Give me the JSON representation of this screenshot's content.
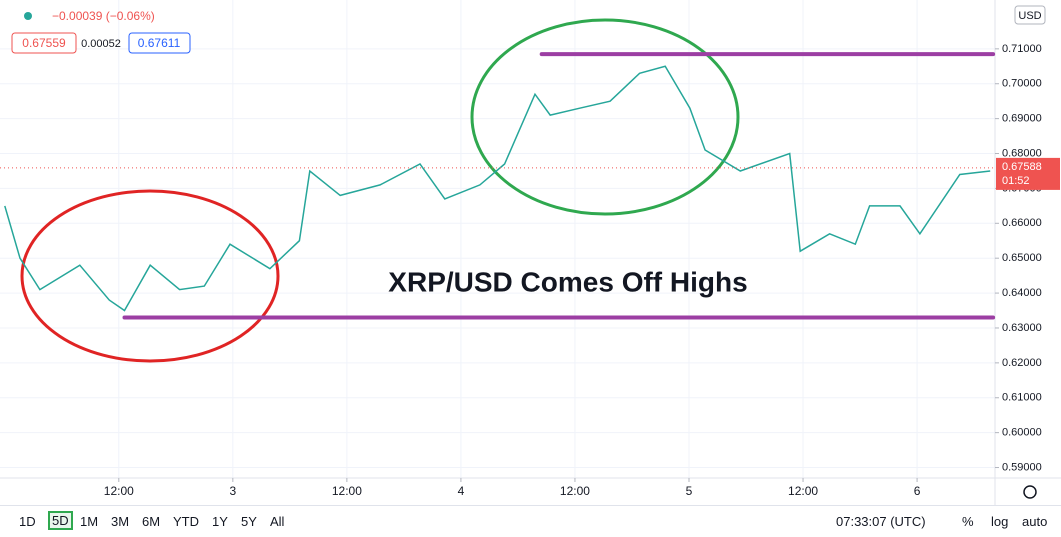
{
  "chart_data": {
    "type": "line",
    "title": "XRP/USD Comes Off Highs",
    "x": [
      0,
      1.6,
      3.7,
      7.9,
      11,
      12.6,
      15.3,
      18.4,
      21,
      23.7,
      27.9,
      31,
      32.1,
      35.3,
      39.5,
      43.7,
      46.3,
      50,
      52.6,
      54.2,
      55.8,
      57.4,
      60.5,
      63.7,
      66.8,
      69.5,
      72.1,
      73.7,
      77.4,
      82.6,
      83.7,
      86.8,
      89.5,
      91,
      94.2,
      96.3,
      100.5,
      103.7
    ],
    "values": [
      0.665,
      0.65,
      0.641,
      0.648,
      0.638,
      0.635,
      0.648,
      0.641,
      0.642,
      0.654,
      0.647,
      0.655,
      0.675,
      0.668,
      0.671,
      0.677,
      0.667,
      0.671,
      0.677,
      0.687,
      0.697,
      0.691,
      0.693,
      0.695,
      0.703,
      0.705,
      0.693,
      0.681,
      0.675,
      0.68,
      0.652,
      0.657,
      0.654,
      0.665,
      0.665,
      0.657,
      0.674,
      0.675
    ],
    "color": "#26a69a",
    "xlim": [
      -0.5,
      104.2
    ],
    "ylim": [
      0.587,
      0.724
    ],
    "xticks": [
      {
        "value": 12,
        "label": "12:00"
      },
      {
        "value": 24,
        "label": "3"
      },
      {
        "value": 36,
        "label": "12:00"
      },
      {
        "value": 48,
        "label": "4"
      },
      {
        "value": 60,
        "label": "12:00"
      },
      {
        "value": 72,
        "label": "5"
      },
      {
        "value": 84,
        "label": "12:00"
      },
      {
        "value": 96,
        "label": "6"
      }
    ],
    "yticks": [
      {
        "value": 0.59,
        "label": "0.59000"
      },
      {
        "value": 0.6,
        "label": "0.60000"
      },
      {
        "value": 0.61,
        "label": "0.61000"
      },
      {
        "value": 0.62,
        "label": "0.62000"
      },
      {
        "value": 0.63,
        "label": "0.63000"
      },
      {
        "value": 0.64,
        "label": "0.64000"
      },
      {
        "value": 0.65,
        "label": "0.65000"
      },
      {
        "value": 0.66,
        "label": "0.66000"
      },
      {
        "value": 0.67,
        "label": "0.67000"
      },
      {
        "value": 0.68,
        "label": "0.68000"
      },
      {
        "value": 0.69,
        "label": "0.69000"
      },
      {
        "value": 0.7,
        "label": "0.70000"
      },
      {
        "value": 0.71,
        "label": "0.71000"
      }
    ],
    "grid": true,
    "currency": "USD",
    "last_price": 0.67588,
    "countdown": "01:52",
    "levels": [
      {
        "value": 0.7085,
        "from": 56.5,
        "to": 104,
        "color": "#9c3ea3"
      },
      {
        "value": 0.633,
        "from": 12.6,
        "to": 104,
        "color": "#9c3ea3"
      }
    ]
  },
  "header": {
    "change": "−0.00039 (−0.06%)",
    "bid": 0.67559,
    "spread": 0.00052,
    "ask": 0.67611
  },
  "toolbar": {
    "ranges": [
      "1D",
      "5D",
      "1M",
      "3M",
      "6M",
      "YTD",
      "1Y",
      "5Y",
      "All"
    ],
    "active": 1,
    "clock": "07:33:07 (UTC)",
    "options": [
      "%",
      "log",
      "auto"
    ]
  }
}
